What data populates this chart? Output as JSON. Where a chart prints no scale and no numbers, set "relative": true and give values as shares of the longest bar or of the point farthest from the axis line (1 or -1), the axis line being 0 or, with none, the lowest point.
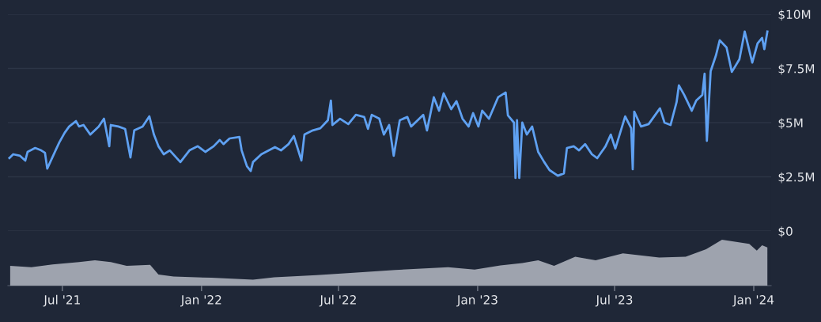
{
  "chart_data": [
    {
      "type": "line",
      "xlim": [
        "2021-04-20",
        "2024-01-24"
      ],
      "ylim": [
        0,
        10
      ],
      "yticks": [
        {
          "value": 0,
          "label": "$0"
        },
        {
          "value": 2.5,
          "label": "$2.5M"
        },
        {
          "value": 5,
          "label": "$5M"
        },
        {
          "value": 7.5,
          "label": "$7.5M"
        },
        {
          "value": 10,
          "label": "$10M"
        }
      ],
      "grid": "y",
      "tick_labels": "y",
      "line_style": "solid",
      "x": [
        "2021-04-22",
        "2021-04-27",
        "2021-05-06",
        "2021-05-13",
        "2021-05-16",
        "2021-05-26",
        "2021-06-03",
        "2021-06-08",
        "2021-06-11",
        "2021-06-22",
        "2021-06-27",
        "2021-07-04",
        "2021-07-10",
        "2021-07-19",
        "2021-07-23",
        "2021-07-29",
        "2021-08-07",
        "2021-08-18",
        "2021-08-25",
        "2021-09-01",
        "2021-09-03",
        "2021-09-13",
        "2021-09-22",
        "2021-09-29",
        "2021-10-04",
        "2021-10-15",
        "2021-10-24",
        "2021-10-30",
        "2021-11-05",
        "2021-11-12",
        "2021-11-20",
        "2021-12-04",
        "2021-12-16",
        "2021-12-27",
        "2022-01-06",
        "2022-01-17",
        "2022-01-25",
        "2022-01-30",
        "2022-02-07",
        "2022-02-20",
        "2022-02-23",
        "2022-03-02",
        "2022-03-07",
        "2022-03-10",
        "2022-03-21",
        "2022-03-31",
        "2022-04-08",
        "2022-04-16",
        "2022-04-26",
        "2022-05-03",
        "2022-05-13",
        "2022-05-17",
        "2022-05-28",
        "2022-06-07",
        "2022-06-17",
        "2022-06-21",
        "2022-06-23",
        "2022-07-03",
        "2022-07-14",
        "2022-07-24",
        "2022-08-04",
        "2022-08-09",
        "2022-08-14",
        "2022-08-24",
        "2022-08-30",
        "2022-09-06",
        "2022-09-12",
        "2022-09-20",
        "2022-09-30",
        "2022-10-05",
        "2022-10-21",
        "2022-10-26",
        "2022-11-04",
        "2022-11-11",
        "2022-11-17",
        "2022-11-27",
        "2022-12-04",
        "2022-12-12",
        "2022-12-20",
        "2022-12-26",
        "2023-01-02",
        "2023-01-07",
        "2023-01-16",
        "2023-01-28",
        "2023-02-07",
        "2023-02-10",
        "2023-02-18",
        "2023-02-20",
        "2023-02-22",
        "2023-02-25",
        "2023-03-01",
        "2023-03-07",
        "2023-03-14",
        "2023-03-22",
        "2023-03-30",
        "2023-04-06",
        "2023-04-17",
        "2023-04-25",
        "2023-04-29",
        "2023-05-08",
        "2023-05-15",
        "2023-05-23",
        "2023-06-01",
        "2023-06-08",
        "2023-06-19",
        "2023-06-26",
        "2023-07-02",
        "2023-07-15",
        "2023-07-23",
        "2023-07-25",
        "2023-07-27",
        "2023-08-05",
        "2023-08-15",
        "2023-08-30",
        "2023-09-05",
        "2023-09-13",
        "2023-09-21",
        "2023-09-24",
        "2023-10-01",
        "2023-10-11",
        "2023-10-17",
        "2023-10-25",
        "2023-10-28",
        "2023-10-31",
        "2023-11-05",
        "2023-11-12",
        "2023-11-17",
        "2023-11-26",
        "2023-12-03",
        "2023-12-13",
        "2023-12-20",
        "2023-12-30",
        "2024-01-06",
        "2024-01-12",
        "2024-01-15",
        "2024-01-19"
      ],
      "series": [
        {
          "color": "#5fa1f2",
          "values": [
            3.37,
            3.54,
            3.47,
            3.25,
            3.65,
            3.83,
            3.72,
            3.61,
            2.88,
            3.72,
            4.09,
            4.53,
            4.82,
            5.07,
            4.82,
            4.89,
            4.45,
            4.82,
            5.18,
            3.91,
            4.89,
            4.82,
            4.71,
            3.39,
            4.64,
            4.82,
            5.29,
            4.45,
            3.91,
            3.54,
            3.72,
            3.18,
            3.72,
            3.91,
            3.65,
            3.91,
            4.2,
            4.01,
            4.27,
            4.34,
            3.72,
            2.99,
            2.77,
            3.18,
            3.54,
            3.72,
            3.87,
            3.72,
            4.01,
            4.38,
            3.25,
            4.45,
            4.64,
            4.74,
            5.11,
            6.02,
            4.89,
            5.18,
            4.93,
            5.36,
            5.26,
            4.71,
            5.36,
            5.18,
            4.45,
            4.89,
            3.47,
            5.11,
            5.26,
            4.82,
            5.36,
            4.64,
            6.17,
            5.55,
            6.35,
            5.62,
            5.99,
            5.18,
            4.82,
            5.44,
            4.82,
            5.55,
            5.18,
            6.17,
            6.39,
            5.33,
            5.0,
            2.45,
            5.11,
            2.45,
            5.0,
            4.45,
            4.82,
            3.65,
            3.18,
            2.81,
            2.55,
            2.66,
            3.83,
            3.91,
            3.72,
            4.01,
            3.54,
            3.36,
            3.91,
            4.45,
            3.8,
            5.29,
            4.74,
            2.85,
            5.51,
            4.82,
            4.93,
            5.66,
            5.0,
            4.89,
            5.95,
            6.72,
            6.28,
            5.55,
            6.02,
            6.28,
            7.26,
            4.16,
            7.37,
            8.1,
            8.8,
            8.47,
            7.34,
            7.92,
            9.2,
            7.77,
            8.65,
            8.91,
            8.39,
            9.2
          ]
        }
      ]
    },
    {
      "type": "area",
      "relative": true,
      "xlim": [
        "2021-04-20",
        "2024-01-24"
      ],
      "tick_labels": "x",
      "xticks": [
        {
          "value": "2021-07-01",
          "label": "Jul '21"
        },
        {
          "value": "2022-01-01",
          "label": "Jan '22"
        },
        {
          "value": "2022-07-01",
          "label": "Jul '22"
        },
        {
          "value": "2023-01-01",
          "label": "Jan '23"
        },
        {
          "value": "2023-07-01",
          "label": "Jul '23"
        },
        {
          "value": "2024-01-01",
          "label": "Jan '24"
        }
      ],
      "x": [
        "2021-04-23",
        "2021-05-21",
        "2021-06-18",
        "2021-07-23",
        "2021-08-13",
        "2021-09-03",
        "2021-09-24",
        "2021-10-25",
        "2021-11-05",
        "2021-11-25",
        "2022-01-14",
        "2022-03-10",
        "2022-04-07",
        "2022-06-02",
        "2022-07-21",
        "2022-09-14",
        "2022-11-23",
        "2022-12-28",
        "2023-01-31",
        "2023-03-01",
        "2023-03-22",
        "2023-04-12",
        "2023-05-10",
        "2023-06-06",
        "2023-07-12",
        "2023-08-29",
        "2023-10-03",
        "2023-10-30",
        "2023-11-20",
        "2023-12-26",
        "2024-01-05",
        "2024-01-12",
        "2024-01-19"
      ],
      "series": [
        {
          "color": "#9ea3ae",
          "values": [
            0.43,
            0.4,
            0.46,
            0.51,
            0.55,
            0.51,
            0.43,
            0.45,
            0.24,
            0.2,
            0.17,
            0.13,
            0.18,
            0.23,
            0.28,
            0.34,
            0.4,
            0.35,
            0.44,
            0.49,
            0.55,
            0.43,
            0.63,
            0.55,
            0.7,
            0.61,
            0.63,
            0.79,
            1.0,
            0.91,
            0.76,
            0.88,
            0.83
          ]
        }
      ]
    }
  ]
}
